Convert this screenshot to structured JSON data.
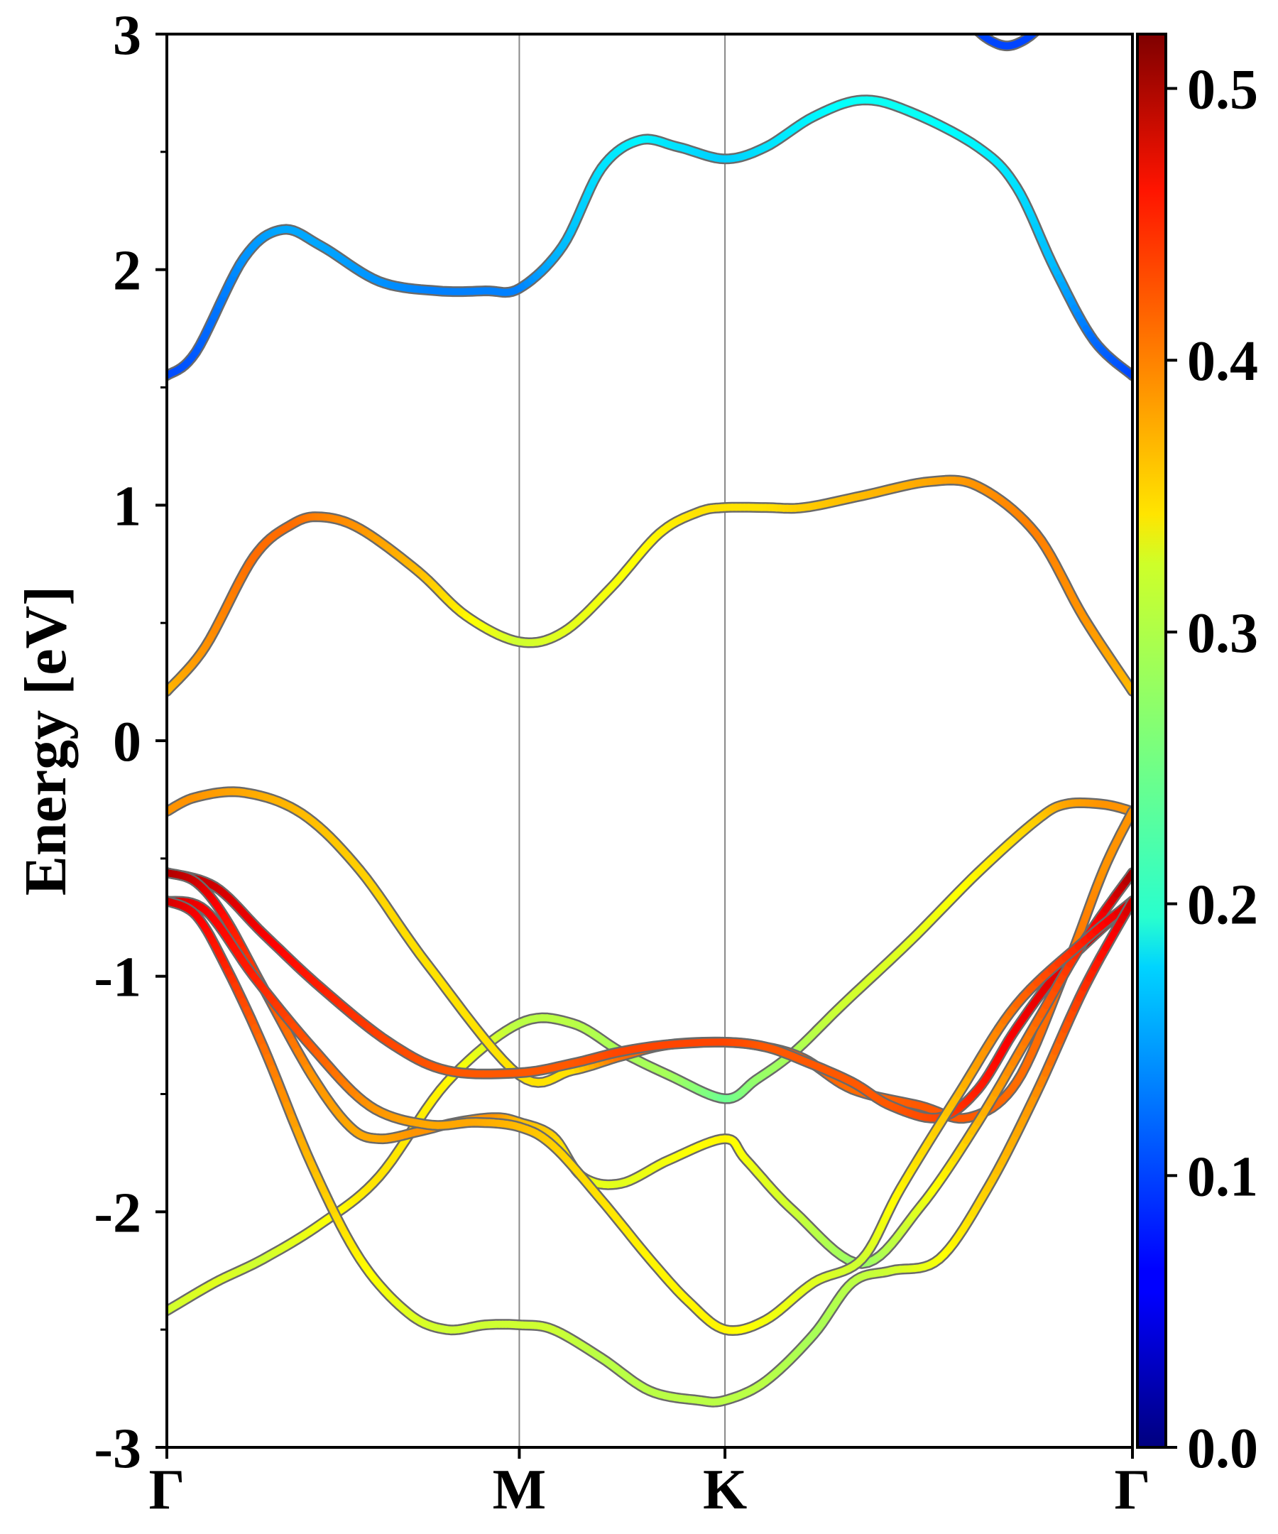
{
  "chart_data": {
    "type": "line",
    "subtype": "band-structure-projected",
    "title": "",
    "ylabel": "Energy [eV]",
    "xlabel": "",
    "ylim": [
      -3,
      3
    ],
    "yticks": [
      "3",
      "2",
      "1",
      "0",
      "-1",
      "-2",
      "-3"
    ],
    "ytick_values": [
      3,
      2,
      1,
      0,
      -1,
      -2,
      -3
    ],
    "kpath": [
      {
        "label": "Γ",
        "k": 0.0
      },
      {
        "label": "M",
        "k": 0.365
      },
      {
        "label": "K",
        "k": 0.578
      },
      {
        "label": "Γ",
        "k": 1.0
      }
    ],
    "colorbar": {
      "cmap": "jet",
      "min": 0.0,
      "max": 0.52,
      "tick_labels": [
        "0.0",
        "0.1",
        "0.2",
        "0.3",
        "0.4",
        "0.5"
      ],
      "tick_values": [
        0.0,
        0.1,
        0.2,
        0.3,
        0.4,
        0.5
      ]
    },
    "bands": [
      {
        "name": "band-1",
        "points": [
          [
            0,
            -2.42
          ],
          [
            0.05,
            -2.3
          ],
          [
            0.1,
            -2.2
          ],
          [
            0.16,
            -2.05
          ],
          [
            0.22,
            -1.85
          ],
          [
            0.29,
            -1.45
          ],
          [
            0.365,
            -1.2
          ],
          [
            0.42,
            -1.2
          ],
          [
            0.47,
            -1.32
          ],
          [
            0.52,
            -1.42
          ],
          [
            0.578,
            -1.52
          ],
          [
            0.61,
            -1.44
          ],
          [
            0.65,
            -1.32
          ],
          [
            0.7,
            -1.12
          ],
          [
            0.77,
            -0.85
          ],
          [
            0.84,
            -0.56
          ],
          [
            0.9,
            -0.34
          ],
          [
            0.93,
            -0.27
          ],
          [
            0.97,
            -0.27
          ],
          [
            1.0,
            -0.3
          ]
        ],
        "weights": [
          0.3,
          0.31,
          0.3,
          0.32,
          0.34,
          0.33,
          0.29,
          0.29,
          0.28,
          0.28,
          0.25,
          0.27,
          0.28,
          0.3,
          0.31,
          0.33,
          0.35,
          0.37,
          0.38,
          0.38
        ]
      },
      {
        "name": "band-2",
        "points": [
          [
            0,
            -0.3
          ],
          [
            0.03,
            -0.24
          ],
          [
            0.08,
            -0.22
          ],
          [
            0.14,
            -0.31
          ],
          [
            0.2,
            -0.55
          ],
          [
            0.27,
            -0.95
          ],
          [
            0.365,
            -1.42
          ],
          [
            0.42,
            -1.4
          ],
          [
            0.47,
            -1.34
          ],
          [
            0.52,
            -1.29
          ],
          [
            0.578,
            -1.28
          ],
          [
            0.62,
            -1.3
          ],
          [
            0.66,
            -1.35
          ],
          [
            0.71,
            -1.48
          ],
          [
            0.78,
            -1.55
          ],
          [
            0.83,
            -1.6
          ],
          [
            0.88,
            -1.45
          ],
          [
            0.93,
            -0.98
          ],
          [
            0.97,
            -0.55
          ],
          [
            1.0,
            -0.3
          ]
        ],
        "weights": [
          0.38,
          0.38,
          0.37,
          0.36,
          0.35,
          0.34,
          0.34,
          0.34,
          0.4,
          0.41,
          0.42,
          0.42,
          0.41,
          0.4,
          0.41,
          0.41,
          0.4,
          0.4,
          0.38,
          0.38
        ]
      },
      {
        "name": "band-3",
        "points": [
          [
            0,
            -0.56
          ],
          [
            0.05,
            -0.62
          ],
          [
            0.1,
            -0.82
          ],
          [
            0.16,
            -1.05
          ],
          [
            0.23,
            -1.28
          ],
          [
            0.29,
            -1.4
          ],
          [
            0.365,
            -1.41
          ],
          [
            0.42,
            -1.37
          ],
          [
            0.47,
            -1.32
          ],
          [
            0.52,
            -1.29
          ],
          [
            0.578,
            -1.28
          ],
          [
            0.62,
            -1.3
          ],
          [
            0.66,
            -1.36
          ],
          [
            0.71,
            -1.45
          ],
          [
            0.75,
            -1.55
          ],
          [
            0.8,
            -1.6
          ],
          [
            0.84,
            -1.48
          ],
          [
            0.88,
            -1.22
          ],
          [
            0.93,
            -0.95
          ],
          [
            1.0,
            -0.68
          ]
        ],
        "weights": [
          0.5,
          0.48,
          0.46,
          0.44,
          0.42,
          0.41,
          0.41,
          0.41,
          0.42,
          0.42,
          0.42,
          0.41,
          0.41,
          0.41,
          0.41,
          0.42,
          0.44,
          0.46,
          0.47,
          0.48
        ]
      },
      {
        "name": "band-4",
        "points": [
          [
            0,
            -0.56
          ],
          [
            0.03,
            -0.6
          ],
          [
            0.06,
            -0.75
          ],
          [
            0.1,
            -1.05
          ],
          [
            0.15,
            -1.42
          ],
          [
            0.19,
            -1.64
          ],
          [
            0.22,
            -1.69
          ],
          [
            0.26,
            -1.66
          ],
          [
            0.3,
            -1.62
          ],
          [
            0.34,
            -1.6
          ],
          [
            0.365,
            -1.62
          ],
          [
            0.4,
            -1.68
          ],
          [
            0.43,
            -1.85
          ],
          [
            0.47,
            -1.88
          ],
          [
            0.52,
            -1.78
          ],
          [
            0.578,
            -1.69
          ],
          [
            0.6,
            -1.78
          ],
          [
            0.65,
            -2.0
          ],
          [
            0.72,
            -2.22
          ],
          [
            0.78,
            -1.98
          ],
          [
            0.84,
            -1.62
          ],
          [
            0.9,
            -1.2
          ],
          [
            0.95,
            -0.85
          ],
          [
            1.0,
            -0.56
          ]
        ],
        "weights": [
          0.5,
          0.48,
          0.45,
          0.42,
          0.38,
          0.37,
          0.37,
          0.38,
          0.38,
          0.38,
          0.36,
          0.35,
          0.32,
          0.31,
          0.32,
          0.33,
          0.32,
          0.3,
          0.27,
          0.31,
          0.36,
          0.4,
          0.44,
          0.5
        ]
      },
      {
        "name": "band-5",
        "points": [
          [
            0,
            -0.68
          ],
          [
            0.04,
            -0.72
          ],
          [
            0.09,
            -1.0
          ],
          [
            0.15,
            -1.3
          ],
          [
            0.21,
            -1.55
          ],
          [
            0.27,
            -1.63
          ],
          [
            0.32,
            -1.62
          ],
          [
            0.365,
            -1.64
          ],
          [
            0.4,
            -1.72
          ],
          [
            0.45,
            -1.95
          ],
          [
            0.5,
            -2.2
          ],
          [
            0.54,
            -2.38
          ],
          [
            0.578,
            -2.5
          ],
          [
            0.62,
            -2.46
          ],
          [
            0.67,
            -2.3
          ],
          [
            0.72,
            -2.2
          ],
          [
            0.76,
            -1.9
          ],
          [
            0.82,
            -1.5
          ],
          [
            0.88,
            -1.12
          ],
          [
            0.95,
            -0.85
          ],
          [
            1.0,
            -0.68
          ]
        ],
        "weights": [
          0.48,
          0.46,
          0.44,
          0.41,
          0.38,
          0.37,
          0.37,
          0.36,
          0.35,
          0.34,
          0.33,
          0.33,
          0.33,
          0.32,
          0.31,
          0.3,
          0.33,
          0.36,
          0.4,
          0.44,
          0.48
        ]
      },
      {
        "name": "band-6",
        "points": [
          [
            0,
            -0.68
          ],
          [
            0.03,
            -0.74
          ],
          [
            0.06,
            -0.95
          ],
          [
            0.1,
            -1.3
          ],
          [
            0.15,
            -1.8
          ],
          [
            0.2,
            -2.2
          ],
          [
            0.25,
            -2.43
          ],
          [
            0.29,
            -2.5
          ],
          [
            0.33,
            -2.48
          ],
          [
            0.365,
            -2.48
          ],
          [
            0.4,
            -2.5
          ],
          [
            0.45,
            -2.62
          ],
          [
            0.5,
            -2.76
          ],
          [
            0.55,
            -2.8
          ],
          [
            0.578,
            -2.8
          ],
          [
            0.62,
            -2.72
          ],
          [
            0.67,
            -2.52
          ],
          [
            0.71,
            -2.3
          ],
          [
            0.75,
            -2.25
          ],
          [
            0.8,
            -2.2
          ],
          [
            0.85,
            -1.9
          ],
          [
            0.9,
            -1.5
          ],
          [
            0.95,
            -1.05
          ],
          [
            1.0,
            -0.68
          ]
        ],
        "weights": [
          0.48,
          0.46,
          0.44,
          0.4,
          0.36,
          0.33,
          0.31,
          0.3,
          0.3,
          0.3,
          0.3,
          0.29,
          0.29,
          0.29,
          0.29,
          0.29,
          0.28,
          0.29,
          0.3,
          0.32,
          0.35,
          0.38,
          0.43,
          0.48
        ]
      },
      {
        "name": "band-7",
        "points": [
          [
            0,
            0.21
          ],
          [
            0.04,
            0.4
          ],
          [
            0.09,
            0.78
          ],
          [
            0.13,
            0.92
          ],
          [
            0.16,
            0.95
          ],
          [
            0.2,
            0.9
          ],
          [
            0.26,
            0.72
          ],
          [
            0.31,
            0.53
          ],
          [
            0.365,
            0.42
          ],
          [
            0.41,
            0.46
          ],
          [
            0.46,
            0.65
          ],
          [
            0.51,
            0.88
          ],
          [
            0.55,
            0.97
          ],
          [
            0.578,
            0.99
          ],
          [
            0.62,
            0.99
          ],
          [
            0.66,
            0.99
          ],
          [
            0.72,
            1.04
          ],
          [
            0.79,
            1.1
          ],
          [
            0.84,
            1.08
          ],
          [
            0.9,
            0.88
          ],
          [
            0.95,
            0.52
          ],
          [
            1.0,
            0.21
          ]
        ],
        "weights": [
          0.36,
          0.38,
          0.4,
          0.4,
          0.39,
          0.38,
          0.36,
          0.33,
          0.3,
          0.31,
          0.32,
          0.33,
          0.34,
          0.34,
          0.34,
          0.35,
          0.36,
          0.37,
          0.38,
          0.39,
          0.38,
          0.36
        ]
      },
      {
        "name": "band-8",
        "points": [
          [
            0,
            1.55
          ],
          [
            0.03,
            1.65
          ],
          [
            0.08,
            2.05
          ],
          [
            0.12,
            2.17
          ],
          [
            0.16,
            2.1
          ],
          [
            0.22,
            1.95
          ],
          [
            0.28,
            1.91
          ],
          [
            0.33,
            1.91
          ],
          [
            0.365,
            1.92
          ],
          [
            0.41,
            2.1
          ],
          [
            0.45,
            2.43
          ],
          [
            0.49,
            2.55
          ],
          [
            0.53,
            2.52
          ],
          [
            0.578,
            2.47
          ],
          [
            0.62,
            2.52
          ],
          [
            0.67,
            2.65
          ],
          [
            0.72,
            2.72
          ],
          [
            0.77,
            2.67
          ],
          [
            0.84,
            2.52
          ],
          [
            0.88,
            2.35
          ],
          [
            0.92,
            2.0
          ],
          [
            0.96,
            1.7
          ],
          [
            1.0,
            1.55
          ]
        ],
        "weights": [
          0.1,
          0.11,
          0.14,
          0.15,
          0.15,
          0.14,
          0.13,
          0.13,
          0.13,
          0.16,
          0.18,
          0.19,
          0.18,
          0.17,
          0.18,
          0.19,
          0.2,
          0.2,
          0.19,
          0.18,
          0.16,
          0.12,
          0.1
        ]
      },
      {
        "name": "band-9",
        "points": [
          [
            0.83,
            3.05
          ],
          [
            0.85,
            2.98
          ],
          [
            0.87,
            2.95
          ],
          [
            0.89,
            2.98
          ],
          [
            0.91,
            3.05
          ]
        ],
        "weights": [
          0.1,
          0.1,
          0.1,
          0.1,
          0.1
        ]
      }
    ]
  }
}
